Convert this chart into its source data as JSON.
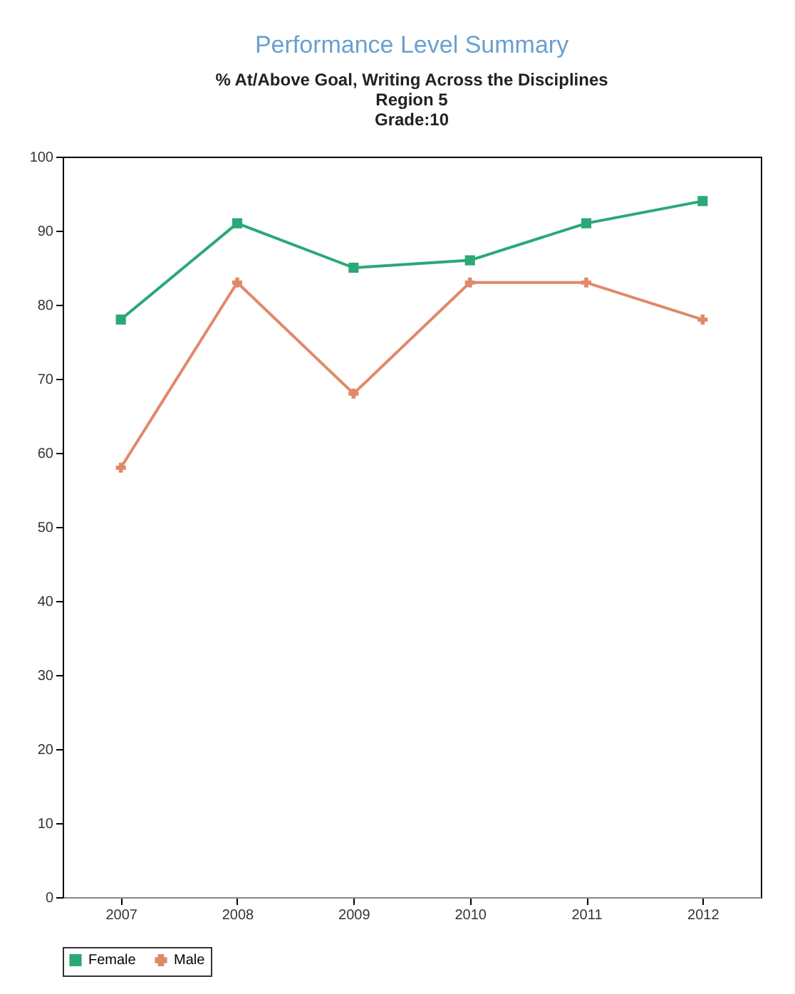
{
  "chart_data": {
    "type": "line",
    "title": "Performance Level Summary",
    "subtitle": [
      "% At/Above Goal, Writing Across the Disciplines",
      "Region 5",
      "Grade:10"
    ],
    "categories": [
      "2007",
      "2008",
      "2009",
      "2010",
      "2011",
      "2012"
    ],
    "series": [
      {
        "name": "Female",
        "color": "#2aa876",
        "marker": "square",
        "values": [
          78,
          91,
          85,
          86,
          91,
          94
        ]
      },
      {
        "name": "Male",
        "color": "#e0896a",
        "marker": "cross",
        "values": [
          58,
          83,
          68,
          83,
          83,
          78
        ]
      }
    ],
    "ylim": [
      0,
      100
    ],
    "yticks": [
      0,
      10,
      20,
      30,
      40,
      50,
      60,
      70,
      80,
      90,
      100
    ],
    "grid": false,
    "legend": "bottom"
  }
}
